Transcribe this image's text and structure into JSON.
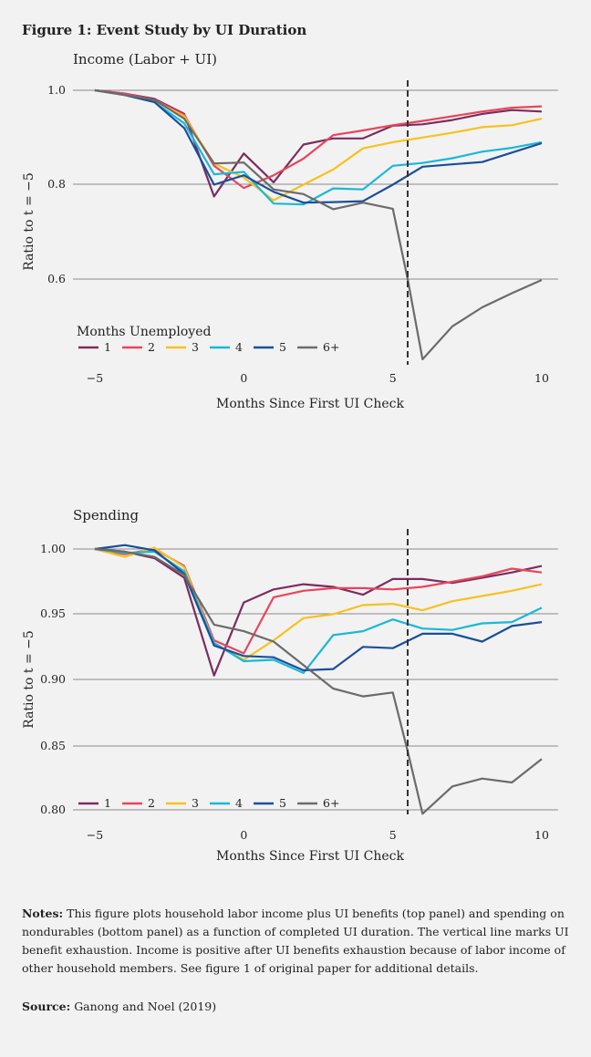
{
  "figure": {
    "title": "Figure 1: Event Study by UI Duration"
  },
  "colors": {
    "1": "#7b2d5e",
    "2": "#e8455d",
    "3": "#f6c21c",
    "4": "#1ab8d8",
    "5": "#1a4f9a",
    "6+": "#6b6b6b"
  },
  "chart_data": [
    {
      "type": "line",
      "title": "Income (Labor + UI)",
      "xlabel": "Months Since First UI Check",
      "ylabel": "Ratio to t = −5",
      "xticks": [
        "−5",
        "0",
        "5",
        "10"
      ],
      "yticks": [
        "1.0",
        "0.8",
        "0.6"
      ],
      "ylim": [
        0.42,
        1.0
      ],
      "xlim": [
        -5,
        10
      ],
      "vline_x": 5.5,
      "legend_title": "Months Unemployed",
      "x": [
        -5,
        -4,
        -3,
        -2,
        -1,
        0,
        1,
        2,
        3,
        4,
        5,
        6,
        7,
        8,
        9,
        10
      ],
      "series": [
        {
          "name": "1",
          "values": [
            1.0,
            0.993,
            0.982,
            0.95,
            0.775,
            0.866,
            0.805,
            0.885,
            0.898,
            0.898,
            0.925,
            null,
            null,
            null,
            null,
            null
          ],
          "x": [
            -5,
            -4,
            -3,
            -2,
            -1,
            0,
            1,
            2,
            3,
            4,
            5,
            6,
            7,
            8,
            9,
            10
          ],
          "pts": [
            [
              -5,
              1.0
            ],
            [
              -4,
              0.993
            ],
            [
              -3,
              0.982
            ],
            [
              -2,
              0.95
            ],
            [
              -1,
              0.775
            ],
            [
              0,
              0.866
            ],
            [
              1,
              0.805
            ],
            [
              2,
              0.885
            ],
            [
              3,
              0.898
            ],
            [
              4,
              0.898
            ],
            [
              5,
              0.925
            ],
            [
              6,
              0.928
            ],
            [
              7,
              0.937
            ],
            [
              8,
              0.95
            ],
            [
              9,
              0.958
            ],
            [
              10,
              0.955
            ]
          ]
        },
        {
          "name": "2",
          "pts": [
            [
              -5,
              1.0
            ],
            [
              -4,
              0.993
            ],
            [
              -3,
              0.98
            ],
            [
              -2,
              0.948
            ],
            [
              -1,
              0.84
            ],
            [
              0,
              0.793
            ],
            [
              1,
              0.82
            ],
            [
              2,
              0.855
            ],
            [
              3,
              0.905
            ],
            [
              4,
              0.915
            ],
            [
              5,
              0.926
            ],
            [
              6,
              0.935
            ],
            [
              7,
              0.945
            ],
            [
              8,
              0.955
            ],
            [
              9,
              0.963
            ],
            [
              10,
              0.966
            ]
          ]
        },
        {
          "name": "3",
          "pts": [
            [
              -5,
              1.0
            ],
            [
              -4,
              0.99
            ],
            [
              -3,
              0.978
            ],
            [
              -2,
              0.945
            ],
            [
              -1,
              0.845
            ],
            [
              0,
              0.815
            ],
            [
              1,
              0.767
            ],
            [
              2,
              0.8
            ],
            [
              3,
              0.832
            ],
            [
              4,
              0.877
            ],
            [
              5,
              0.89
            ],
            [
              6,
              0.9
            ],
            [
              7,
              0.91
            ],
            [
              8,
              0.922
            ],
            [
              9,
              0.926
            ],
            [
              10,
              0.94
            ]
          ]
        },
        {
          "name": "4",
          "pts": [
            [
              -5,
              1.0
            ],
            [
              -4,
              0.99
            ],
            [
              -3,
              0.975
            ],
            [
              -2,
              0.93
            ],
            [
              -1,
              0.822
            ],
            [
              0,
              0.827
            ],
            [
              1,
              0.76
            ],
            [
              2,
              0.758
            ],
            [
              3,
              0.792
            ],
            [
              4,
              0.79
            ],
            [
              5,
              0.84
            ],
            [
              6,
              0.846
            ],
            [
              7,
              0.856
            ],
            [
              8,
              0.87
            ],
            [
              9,
              0.878
            ],
            [
              10,
              0.89
            ]
          ]
        },
        {
          "name": "5",
          "pts": [
            [
              -5,
              1.0
            ],
            [
              -4,
              0.99
            ],
            [
              -3,
              0.975
            ],
            [
              -2,
              0.92
            ],
            [
              -1,
              0.8
            ],
            [
              0,
              0.82
            ],
            [
              1,
              0.785
            ],
            [
              2,
              0.762
            ],
            [
              3,
              0.763
            ],
            [
              4,
              0.765
            ],
            [
              5,
              0.8
            ],
            [
              6,
              0.838
            ],
            [
              7,
              0.843
            ],
            [
              8,
              0.848
            ],
            [
              9,
              0.868
            ],
            [
              10,
              0.888
            ]
          ]
        },
        {
          "name": "6+",
          "pts": [
            [
              -5,
              1.0
            ],
            [
              -4,
              0.99
            ],
            [
              -3,
              0.98
            ],
            [
              -2,
              0.94
            ],
            [
              -1,
              0.845
            ],
            [
              0,
              0.847
            ],
            [
              1,
              0.79
            ],
            [
              2,
              0.78
            ],
            [
              3,
              0.748
            ],
            [
              4,
              0.762
            ],
            [
              5,
              0.749
            ],
            [
              5.5,
              0.6
            ],
            [
              6,
              0.43
            ],
            [
              7,
              0.5
            ],
            [
              8,
              0.54
            ],
            [
              9,
              0.57
            ],
            [
              10,
              0.598
            ]
          ]
        }
      ]
    },
    {
      "type": "line",
      "title": "Spending",
      "xlabel": "Months Since First UI Check",
      "ylabel": "Ratio to t = −5",
      "xticks": [
        "−5",
        "0",
        "5",
        "10"
      ],
      "yticks": [
        "1.00",
        "0.95",
        "0.90",
        "0.85",
        "0.80"
      ],
      "ylim": [
        0.8,
        1.0
      ],
      "xlim": [
        -5,
        10
      ],
      "vline_x": 5.5,
      "series": [
        {
          "name": "1",
          "pts": [
            [
              -5,
              1.0
            ],
            [
              -4,
              0.998
            ],
            [
              -3,
              0.993
            ],
            [
              -2,
              0.978
            ],
            [
              -1,
              0.903
            ],
            [
              0,
              0.959
            ],
            [
              1,
              0.969
            ],
            [
              2,
              0.973
            ],
            [
              3,
              0.971
            ],
            [
              4,
              0.965
            ],
            [
              5,
              0.977
            ],
            [
              6,
              0.977
            ],
            [
              7,
              0.974
            ],
            [
              8,
              0.978
            ],
            [
              9,
              0.982
            ],
            [
              10,
              0.987
            ]
          ]
        },
        {
          "name": "2",
          "pts": [
            [
              -5,
              1.0
            ],
            [
              -4,
              0.996
            ],
            [
              -3,
              1.0
            ],
            [
              -2,
              0.987
            ],
            [
              -1,
              0.93
            ],
            [
              0,
              0.92
            ],
            [
              1,
              0.963
            ],
            [
              2,
              0.968
            ],
            [
              3,
              0.97
            ],
            [
              4,
              0.97
            ],
            [
              5,
              0.969
            ],
            [
              6,
              0.971
            ],
            [
              7,
              0.975
            ],
            [
              8,
              0.979
            ],
            [
              9,
              0.985
            ],
            [
              10,
              0.982
            ]
          ]
        },
        {
          "name": "3",
          "pts": [
            [
              -5,
              1.0
            ],
            [
              -4,
              0.994
            ],
            [
              -3,
              1.001
            ],
            [
              -2,
              0.986
            ],
            [
              -1,
              0.928
            ],
            [
              0,
              0.915
            ],
            [
              1,
              0.93
            ],
            [
              2,
              0.947
            ],
            [
              3,
              0.95
            ],
            [
              4,
              0.957
            ],
            [
              5,
              0.958
            ],
            [
              6,
              0.953
            ],
            [
              7,
              0.96
            ],
            [
              8,
              0.964
            ],
            [
              9,
              0.968
            ],
            [
              10,
              0.973
            ]
          ]
        },
        {
          "name": "4",
          "pts": [
            [
              -5,
              1.0
            ],
            [
              -4,
              0.997
            ],
            [
              -3,
              0.998
            ],
            [
              -2,
              0.983
            ],
            [
              -1,
              0.928
            ],
            [
              0,
              0.914
            ],
            [
              1,
              0.915
            ],
            [
              2,
              0.905
            ],
            [
              3,
              0.934
            ],
            [
              4,
              0.937
            ],
            [
              5,
              0.946
            ],
            [
              6,
              0.939
            ],
            [
              7,
              0.938
            ],
            [
              8,
              0.943
            ],
            [
              9,
              0.944
            ],
            [
              10,
              0.955
            ]
          ]
        },
        {
          "name": "5",
          "pts": [
            [
              -5,
              1.0
            ],
            [
              -4,
              1.003
            ],
            [
              -3,
              0.999
            ],
            [
              -2,
              0.981
            ],
            [
              -1,
              0.926
            ],
            [
              0,
              0.918
            ],
            [
              1,
              0.917
            ],
            [
              2,
              0.907
            ],
            [
              3,
              0.908
            ],
            [
              4,
              0.925
            ],
            [
              5,
              0.924
            ],
            [
              6,
              0.935
            ],
            [
              7,
              0.935
            ],
            [
              8,
              0.929
            ],
            [
              9,
              0.941
            ],
            [
              10,
              0.944
            ]
          ]
        },
        {
          "name": "6+",
          "pts": [
            [
              -5,
              1.0
            ],
            [
              -4,
              0.998
            ],
            [
              -3,
              0.994
            ],
            [
              -2,
              0.98
            ],
            [
              -1,
              0.942
            ],
            [
              0,
              0.937
            ],
            [
              1,
              0.929
            ],
            [
              2,
              0.911
            ],
            [
              3,
              0.893
            ],
            [
              4,
              0.887
            ],
            [
              5,
              0.89
            ],
            [
              5.5,
              0.845
            ],
            [
              6,
              0.797
            ],
            [
              7,
              0.818
            ],
            [
              8,
              0.824
            ],
            [
              9,
              0.821
            ],
            [
              10,
              0.839
            ]
          ]
        }
      ]
    }
  ],
  "notes": {
    "label": "Notes:",
    "text": " This figure plots household labor income plus UI benefits (top panel) and spending on nondurables (bottom panel) as a function of completed UI duration. The vertical line marks UI benefit exhaustion. Income is positive after UI benefits exhaustion because of labor income of other household members. See figure 1 of original paper for additional details."
  },
  "source": {
    "label": "Source:",
    "text": " Ganong and Noel (2019)"
  }
}
